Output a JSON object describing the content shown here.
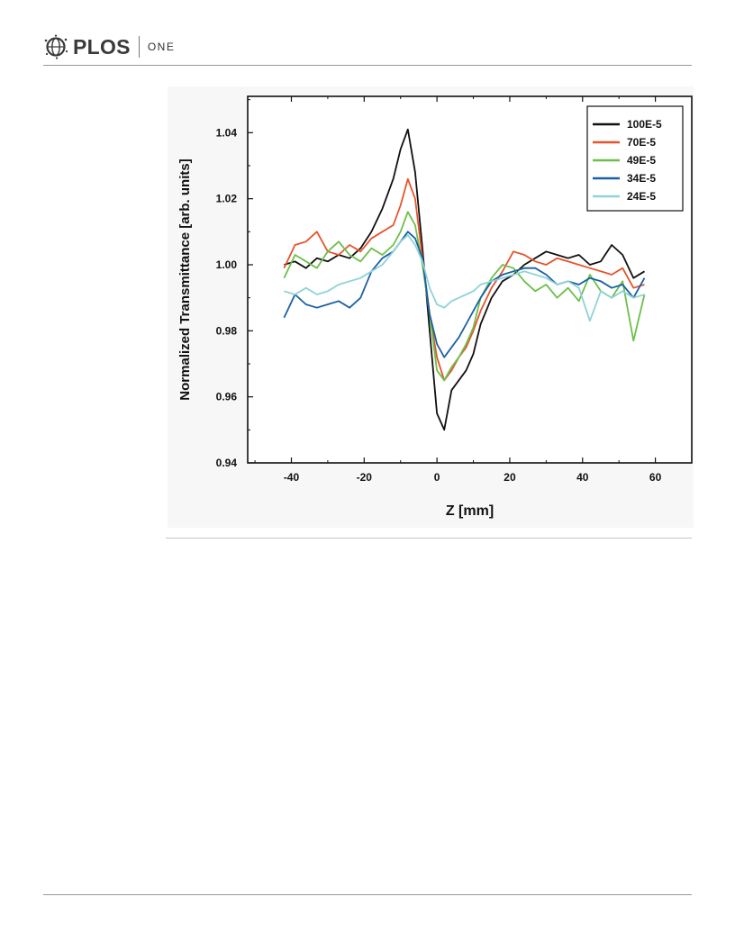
{
  "header": {
    "brand": "PLOS",
    "journal": "ONE"
  },
  "chart_data": {
    "type": "line",
    "xlabel": "Z [mm]",
    "ylabel": "Normalized Transmittance [arb. units]",
    "xlim": [
      -52,
      70
    ],
    "ylim": [
      0.94,
      1.051
    ],
    "xticks": [
      -40,
      -20,
      0,
      20,
      40,
      60
    ],
    "xtick_labels": [
      "-40",
      "-20",
      "0",
      "20",
      "40",
      "60"
    ],
    "yticks": [
      0.94,
      0.96,
      0.98,
      1.0,
      1.02,
      1.04
    ],
    "ytick_labels": [
      "0.94",
      "0.96",
      "0.98",
      "1.00",
      "1.02",
      "1.04"
    ],
    "legend_position": "top-right",
    "grid": false,
    "x": [
      -42,
      -39,
      -36,
      -33,
      -30,
      -27,
      -24,
      -21,
      -18,
      -15,
      -12,
      -10,
      -8,
      -6,
      -4,
      -2,
      0,
      2,
      4,
      6,
      8,
      10,
      12,
      15,
      18,
      21,
      24,
      27,
      30,
      33,
      36,
      39,
      42,
      45,
      48,
      51,
      54,
      57
    ],
    "series": [
      {
        "name": "100E-5",
        "color": "#111111",
        "values": [
          1.0,
          1.001,
          0.999,
          1.002,
          1.001,
          1.003,
          1.002,
          1.005,
          1.01,
          1.017,
          1.026,
          1.035,
          1.041,
          1.028,
          1.005,
          0.98,
          0.955,
          0.95,
          0.962,
          0.965,
          0.968,
          0.973,
          0.982,
          0.99,
          0.995,
          0.997,
          1.0,
          1.002,
          1.004,
          1.003,
          1.002,
          1.003,
          1.0,
          1.001,
          1.006,
          1.003,
          0.996,
          0.998
        ]
      },
      {
        "name": "70E-5",
        "color": "#e8532b",
        "values": [
          0.999,
          1.006,
          1.007,
          1.01,
          1.004,
          1.003,
          1.006,
          1.004,
          1.008,
          1.01,
          1.012,
          1.018,
          1.026,
          1.02,
          1.002,
          0.985,
          0.972,
          0.965,
          0.968,
          0.972,
          0.975,
          0.98,
          0.986,
          0.993,
          0.998,
          1.004,
          1.003,
          1.001,
          1.0,
          1.002,
          1.001,
          1.0,
          0.999,
          0.998,
          0.997,
          0.999,
          0.993,
          0.994
        ]
      },
      {
        "name": "49E-5",
        "color": "#6cbf4a",
        "values": [
          0.996,
          1.003,
          1.001,
          0.999,
          1.004,
          1.007,
          1.003,
          1.001,
          1.005,
          1.003,
          1.006,
          1.01,
          1.016,
          1.012,
          1.0,
          0.985,
          0.968,
          0.965,
          0.969,
          0.972,
          0.976,
          0.981,
          0.99,
          0.996,
          1.0,
          0.999,
          0.995,
          0.992,
          0.994,
          0.99,
          0.993,
          0.989,
          0.997,
          0.992,
          0.99,
          0.995,
          0.977,
          0.991
        ]
      },
      {
        "name": "34E-5",
        "color": "#1a5fa3",
        "values": [
          0.984,
          0.991,
          0.988,
          0.987,
          0.988,
          0.989,
          0.987,
          0.99,
          0.998,
          1.002,
          1.004,
          1.007,
          1.01,
          1.008,
          1.002,
          0.985,
          0.976,
          0.972,
          0.975,
          0.978,
          0.982,
          0.986,
          0.99,
          0.995,
          0.997,
          0.998,
          0.999,
          0.999,
          0.997,
          0.994,
          0.995,
          0.994,
          0.996,
          0.995,
          0.993,
          0.994,
          0.99,
          0.996
        ]
      },
      {
        "name": "24E-5",
        "color": "#8fd3d6",
        "values": [
          0.992,
          0.991,
          0.993,
          0.991,
          0.992,
          0.994,
          0.995,
          0.996,
          0.998,
          1.0,
          1.004,
          1.007,
          1.009,
          1.006,
          1.001,
          0.993,
          0.988,
          0.987,
          0.989,
          0.99,
          0.991,
          0.992,
          0.994,
          0.995,
          0.996,
          0.997,
          0.998,
          0.997,
          0.996,
          0.994,
          0.995,
          0.993,
          0.983,
          0.992,
          0.99,
          0.992,
          0.99,
          0.991
        ]
      }
    ]
  }
}
